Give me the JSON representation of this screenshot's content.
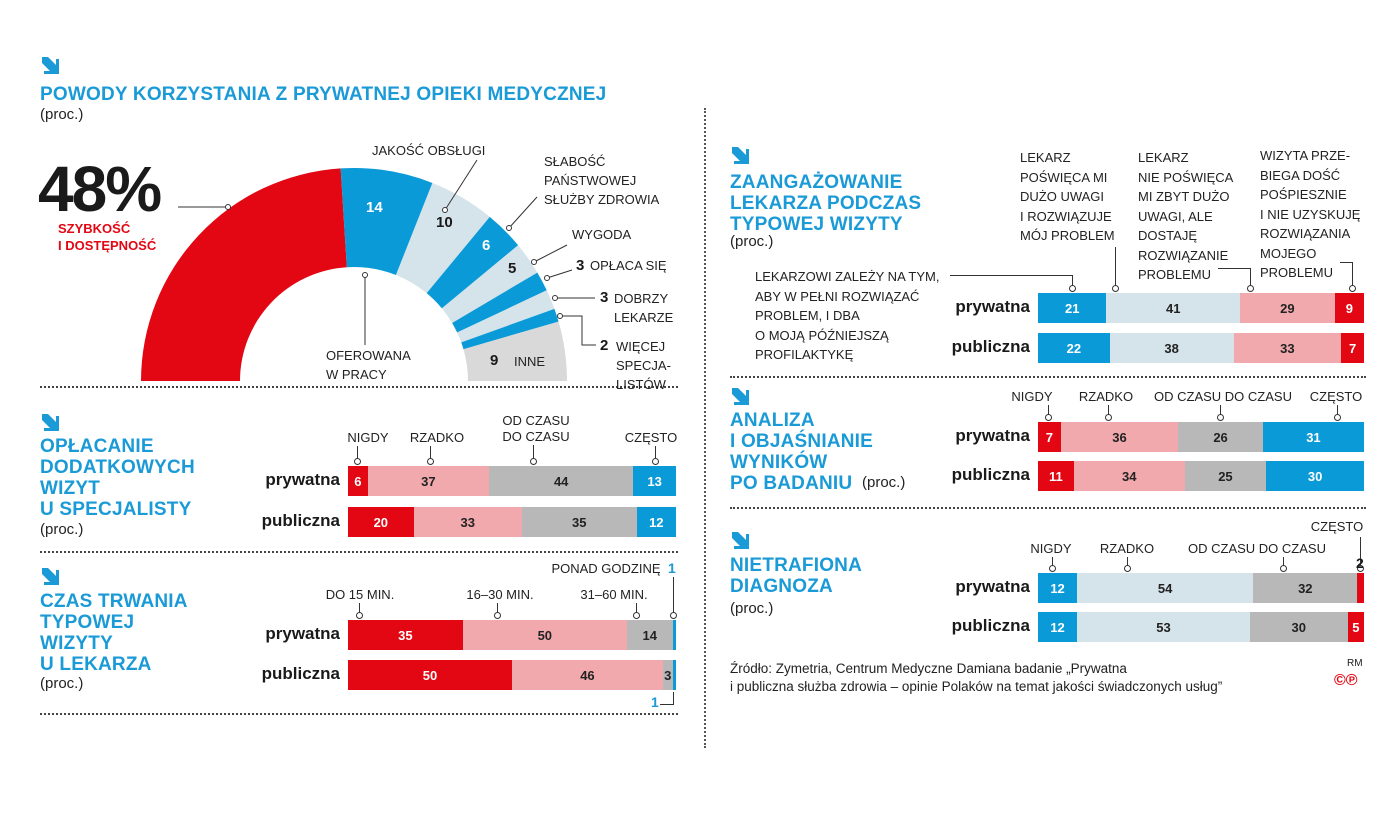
{
  "colors": {
    "accent": "#1a9ad6",
    "red": "#e30613",
    "pink": "#f2a9ad",
    "gray": "#b8b8b8",
    "light": "#d5e3ea",
    "blue": "#0a9ad8",
    "donut_gray": "#d9d9d9"
  },
  "chart_data": [
    {
      "type": "pie",
      "title": "POWODY KORZYSTANIA Z PRYWATNEJ OPIEKI MEDYCZNEJ",
      "unit": "(proc.)",
      "segments": [
        {
          "label": "SZYBKOŚĆ\nI DOSTĘPNOŚĆ",
          "value": 48,
          "display": "48%",
          "color": "#e30613"
        },
        {
          "label": "OFEROWANA\nW PRACY",
          "value": 14,
          "display": "14",
          "color": "#0a9ad8"
        },
        {
          "label": "JAKOŚĆ OBSŁUGI",
          "value": 10,
          "display": "10",
          "color": "#d5e3ea"
        },
        {
          "label": "SŁABOŚĆ\nPAŃSTWOWEJ\nSŁUŻBY ZDROWIA",
          "value": 6,
          "display": "6",
          "color": "#0a9ad8"
        },
        {
          "label": "WYGODA",
          "value": 5,
          "display": "5",
          "color": "#d5e3ea"
        },
        {
          "label": "OPŁACA SIĘ",
          "value": 3,
          "display": "3",
          "color": "#0a9ad8"
        },
        {
          "label": "DOBRZY\nLEKARZE",
          "value": 3,
          "display": "3",
          "color": "#d5e3ea"
        },
        {
          "label": "WIĘCEJ\nSPECJA-\nLISTÓW",
          "value": 2,
          "display": "2",
          "color": "#0a9ad8"
        },
        {
          "label": "INNE",
          "value": 9,
          "display": "9",
          "color": "#d9d9d9"
        }
      ]
    },
    {
      "type": "bar",
      "title": "OPŁACANIE\nDODATKOWYCH\nWIZYT\nU SPECJALISTY",
      "unit": "(proc.)",
      "categories": [
        "NIGDY",
        "RZADKO",
        "OD CZASU\nDO CZASU",
        "CZĘSTO"
      ],
      "colors": [
        "#e30613",
        "#f2a9ad",
        "#b8b8b8",
        "#0a9ad8"
      ],
      "series": [
        {
          "name": "prywatna",
          "values": [
            6,
            37,
            44,
            13
          ]
        },
        {
          "name": "publiczna",
          "values": [
            20,
            33,
            35,
            12
          ]
        }
      ]
    },
    {
      "type": "bar",
      "title": "CZAS TRWANIA\nTYPOWEJ\nWIZYTY\nU LEKARZA",
      "unit": "(proc.)",
      "categories": [
        "DO 15 MIN.",
        "16–30 MIN.",
        "31–60 MIN.",
        "PONAD GODZINĘ"
      ],
      "colors": [
        "#e30613",
        "#f2a9ad",
        "#b8b8b8",
        "#0a9ad8"
      ],
      "series": [
        {
          "name": "prywatna",
          "values": [
            35,
            50,
            14,
            1
          ]
        },
        {
          "name": "publiczna",
          "values": [
            50,
            46,
            3,
            1
          ]
        }
      ]
    },
    {
      "type": "bar",
      "title": "ZAANGAŻOWANIE\nLEKARZA PODCZAS\nTYPOWEJ WIZYTY",
      "unit": "(proc.)",
      "categories": [
        "LEKARZOWI ZALEŻY NA TYM,\nABY W PEŁNI ROZWIĄZAĆ\nPROBLEM, I DBA\nO MOJĄ PÓŹNIEJSZĄ\nPROFILAKTYKĘ",
        "LEKARZ\nPOŚWIĘCA MI\nDUŻO UWAGI\nI ROZWIĄZUJE\nMÓJ PROBLEM",
        "LEKARZ\nNIE POŚWIĘCA\nMI ZBYT DUŻO\nUWAGI, ALE\nDOSTAJĘ\nROZWIĄZANIE\nPROBLEMU",
        "WIZYTA PRZE-\nBIEGA DOŚĆ\nPOŚPIESZNIE\nI NIE UZYSKUJĘ\nROZWIĄZANIA\nMOJEGO\nPROBLEMU"
      ],
      "colors": [
        "#0a9ad8",
        "#d5e3ea",
        "#f2a9ad",
        "#e30613"
      ],
      "series": [
        {
          "name": "prywatna",
          "values": [
            21,
            41,
            29,
            9
          ]
        },
        {
          "name": "publiczna",
          "values": [
            22,
            38,
            33,
            7
          ]
        }
      ]
    },
    {
      "type": "bar",
      "title": "ANALIZA\nI OBJAŚNIANIE\nWYNIKÓW\nPO BADANIU",
      "unit": "(proc.)",
      "categories": [
        "NIGDY",
        "RZADKO",
        "OD CZASU DO CZASU",
        "CZĘSTO"
      ],
      "colors": [
        "#e30613",
        "#f2a9ad",
        "#b8b8b8",
        "#0a9ad8"
      ],
      "series": [
        {
          "name": "prywatna",
          "values": [
            7,
            36,
            26,
            31
          ]
        },
        {
          "name": "publiczna",
          "values": [
            11,
            34,
            25,
            30
          ]
        }
      ]
    },
    {
      "type": "bar",
      "title": "NIETRAFIONA\nDIAGNOZA",
      "unit": "(proc.)",
      "categories": [
        "NIGDY",
        "RZADKO",
        "OD CZASU DO CZASU",
        "CZĘSTO"
      ],
      "colors": [
        "#0a9ad8",
        "#d5e3ea",
        "#b8b8b8",
        "#e30613"
      ],
      "series": [
        {
          "name": "prywatna",
          "values": [
            12,
            54,
            32,
            2
          ]
        },
        {
          "name": "publiczna",
          "values": [
            12,
            53,
            30,
            5
          ]
        }
      ]
    }
  ],
  "source": "Źródło: Zymetria, Centrum Medyczne Damiana badanie „Prywatna\ni publiczna służba zdrowia – opinie Polaków na temat jakości świadczonych usług”",
  "credit": "RM"
}
